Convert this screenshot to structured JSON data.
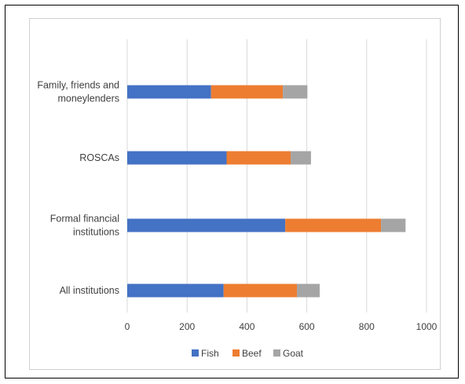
{
  "chart_data": {
    "type": "bar",
    "orientation": "horizontal",
    "stacked": true,
    "categories": [
      [
        "Family, friends and",
        "moneylenders"
      ],
      [
        "ROSCAs"
      ],
      [
        "Formal financial",
        "institutions"
      ],
      [
        "All institutions"
      ]
    ],
    "series": [
      {
        "name": "Fish",
        "color": "#4472c4",
        "values": [
          280,
          332,
          528,
          322
        ]
      },
      {
        "name": "Beef",
        "color": "#ed7d31",
        "values": [
          240,
          214,
          320,
          245
        ]
      },
      {
        "name": "Goat",
        "color": "#a5a5a5",
        "values": [
          82,
          68,
          82,
          76
        ]
      }
    ],
    "xlim": [
      0,
      1000
    ],
    "xticks": [
      "0",
      "200",
      "400",
      "600",
      "800",
      "1000"
    ],
    "grid": true,
    "legend_position": "bottom",
    "title": "",
    "xlabel": "",
    "ylabel": ""
  }
}
